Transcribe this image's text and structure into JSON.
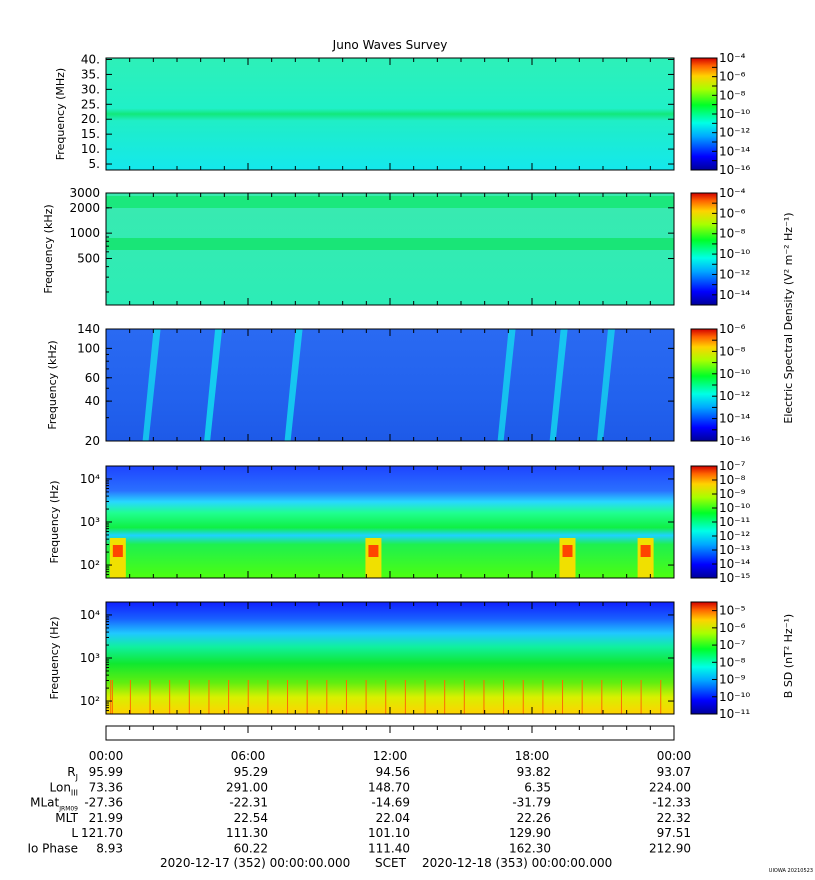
{
  "title": "Juno Waves Survey",
  "chart_data": [
    {
      "type": "heatmap",
      "panel": "E-field high",
      "ylabel": "Frequency (MHz)",
      "yscale": "linear",
      "ylim": [
        3,
        40.5
      ],
      "yticks": [
        5,
        10,
        15,
        20,
        25,
        30,
        35,
        40
      ],
      "ytick_labels": [
        "5.",
        "10.",
        "15.",
        "20.",
        "25.",
        "30.",
        "35.",
        "40."
      ],
      "colorbar": {
        "min_exp": -16,
        "max_exp": -4,
        "labeled_exponents": [
          -4,
          -6,
          -8,
          -10,
          -12,
          -14,
          -16
        ]
      },
      "features": [
        {
          "kind": "band",
          "freq_center": 21,
          "level_exp": -11
        },
        {
          "kind": "background",
          "level_exp": -13
        }
      ]
    },
    {
      "type": "heatmap",
      "panel": "E-field mid",
      "ylabel": "Frequency (kHz)",
      "yscale": "log",
      "ylim": [
        140,
        3000
      ],
      "yticks": [
        500,
        1000,
        2000,
        3000
      ],
      "ytick_labels": [
        "500",
        "1000",
        "2000",
        "3000"
      ],
      "colorbar": {
        "min_exp": -15,
        "max_exp": -4,
        "labeled_exponents": [
          -4,
          -6,
          -8,
          -10,
          -12,
          -14
        ]
      },
      "features": [
        {
          "kind": "band",
          "freq_center": 2300,
          "level_exp": -10
        },
        {
          "kind": "band",
          "freq_center": 750,
          "level_exp": -10
        },
        {
          "kind": "background",
          "level_exp": -12
        }
      ]
    },
    {
      "type": "heatmap",
      "panel": "E-field low",
      "ylabel": "Frequency (kHz)",
      "yscale": "log",
      "ylim": [
        20,
        140
      ],
      "yticks": [
        20,
        40,
        60,
        100,
        140
      ],
      "ytick_labels": [
        "20",
        "40",
        "60",
        "100",
        "140"
      ],
      "colorbar": {
        "min_exp": -16,
        "max_exp": -6,
        "labeled_exponents": [
          -6,
          -8,
          -10,
          -12,
          -14,
          -16
        ]
      },
      "colorbar_label": "Electric Spectral Density (V² m⁻² Hz⁻¹)",
      "features": [
        {
          "kind": "streak",
          "time_hr": 4.4,
          "level_exp": -12
        },
        {
          "kind": "streak",
          "time_hr": 7.8,
          "level_exp": -12.5
        },
        {
          "kind": "background",
          "level_exp": -14.5
        }
      ]
    },
    {
      "type": "heatmap",
      "panel": "E-field survey low",
      "ylabel": "Frequency (Hz)",
      "yscale": "log",
      "ylim": [
        50,
        20000
      ],
      "yticks": [
        100,
        1000,
        10000
      ],
      "ytick_labels": [
        "10²",
        "10³",
        "10⁴"
      ],
      "colorbar": {
        "min_exp": -15,
        "max_exp": -7,
        "labeled_exponents": [
          -7,
          -8,
          -9,
          -10,
          -11,
          -12,
          -13,
          -14,
          -15
        ]
      },
      "features": [
        {
          "kind": "hot_patch",
          "time_hr": 0.5,
          "freq": 200
        },
        {
          "kind": "hot_patch",
          "time_hr": 11.3,
          "freq": 200
        },
        {
          "kind": "hot_patch",
          "time_hr": 19.5,
          "freq": 200
        },
        {
          "kind": "hot_patch",
          "time_hr": 22.8,
          "freq": 220
        }
      ]
    },
    {
      "type": "heatmap",
      "panel": "B-field",
      "ylabel": "Frequency (Hz)",
      "yscale": "log",
      "ylim": [
        50,
        20000
      ],
      "yticks": [
        100,
        1000,
        10000
      ],
      "ytick_labels": [
        "10²",
        "10³",
        "10⁴"
      ],
      "colorbar": {
        "min_exp": -11,
        "max_exp": -4.5,
        "labeled_exponents": [
          -5,
          -6,
          -7,
          -8,
          -9,
          -10,
          -11
        ]
      },
      "colorbar_label": "B SD (nT² Hz⁻¹)"
    }
  ],
  "time_axis": {
    "labels": [
      "00:00",
      "06:00",
      "12:00",
      "18:00",
      "00:00"
    ],
    "hours": [
      0,
      6,
      12,
      18,
      24
    ]
  },
  "ephemeris": {
    "rows": [
      {
        "label": "R",
        "sub": "J",
        "values": [
          "95.99",
          "95.29",
          "94.56",
          "93.82",
          "93.07"
        ]
      },
      {
        "label": "Lon",
        "sub": "III",
        "values": [
          "73.36",
          "291.00",
          "148.70",
          "6.35",
          "224.00"
        ]
      },
      {
        "label": "MLat",
        "sub": "JRM09",
        "values": [
          "-27.36",
          "-22.31",
          "-14.69",
          "-31.79",
          "-12.33"
        ]
      },
      {
        "label": "MLT",
        "sub": "",
        "values": [
          "21.99",
          "22.54",
          "22.04",
          "22.26",
          "22.32"
        ]
      },
      {
        "label": "L",
        "sub": "",
        "values": [
          "121.70",
          "111.30",
          "101.10",
          "129.90",
          "97.51"
        ]
      },
      {
        "label": "Io Phase",
        "sub": "",
        "values": [
          "8.93",
          "60.22",
          "111.40",
          "162.30",
          "212.90"
        ]
      }
    ]
  },
  "footer": {
    "start": "2020-12-17 (352) 00:00:00.000",
    "scet": "SCET",
    "end": "2020-12-18 (353) 00:00:00.000",
    "stamp": "UIOWA 20210523"
  }
}
